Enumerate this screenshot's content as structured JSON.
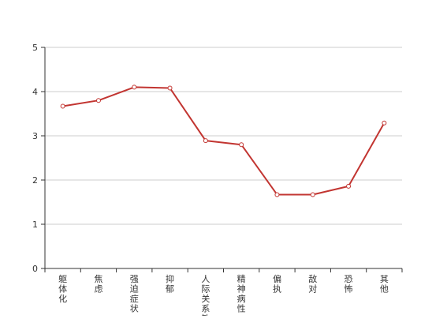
{
  "chart_data": {
    "type": "line",
    "title": "",
    "xlabel": "",
    "ylabel": "",
    "categories": [
      "躯体化",
      "焦虑",
      "强迫症状",
      "抑郁",
      "人际关系敏感",
      "精神病性",
      "偏执",
      "敌对",
      "恐怖",
      "其他"
    ],
    "series": [
      {
        "values": [
          3.67,
          3.8,
          4.1,
          4.08,
          2.89,
          2.8,
          1.67,
          1.67,
          1.86,
          3.29
        ]
      }
    ],
    "ylim": [
      0,
      5
    ],
    "yticks": [
      0,
      1,
      2,
      3,
      4,
      5
    ],
    "grid": true,
    "legend": "none",
    "colors": {
      "line": "#c23531",
      "grid": "#cccccc",
      "axis": "#333333",
      "marker_fill": "#ffffff"
    }
  }
}
